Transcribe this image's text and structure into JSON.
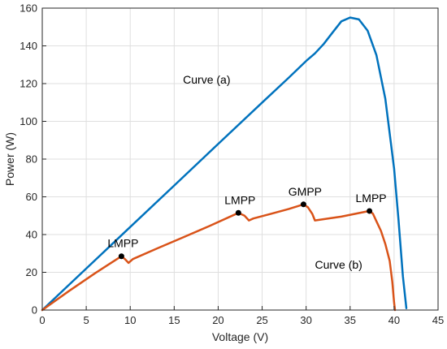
{
  "chart_data": {
    "type": "line",
    "title": "",
    "xlabel": "Voltage (V)",
    "ylabel": "Power (W)",
    "xlim": [
      0,
      45
    ],
    "ylim": [
      0,
      160
    ],
    "x_ticks": [
      0,
      5,
      10,
      15,
      20,
      25,
      30,
      35,
      40,
      45
    ],
    "y_ticks": [
      0,
      20,
      40,
      60,
      80,
      100,
      120,
      140,
      160
    ],
    "grid": true,
    "series": [
      {
        "name": "Curve (a)",
        "color": "#0072BD",
        "points": [
          [
            0,
            0
          ],
          [
            5,
            22
          ],
          [
            10,
            44
          ],
          [
            15,
            66
          ],
          [
            20,
            88
          ],
          [
            25,
            110
          ],
          [
            28,
            123
          ],
          [
            30,
            132
          ],
          [
            31,
            136
          ],
          [
            32,
            141
          ],
          [
            33,
            147
          ],
          [
            34,
            153
          ],
          [
            35,
            155
          ],
          [
            36,
            154
          ],
          [
            37,
            148
          ],
          [
            38,
            135
          ],
          [
            39,
            112
          ],
          [
            40,
            75
          ],
          [
            40.5,
            48
          ],
          [
            41,
            18
          ],
          [
            41.4,
            1
          ]
        ]
      },
      {
        "name": "Curve (b)",
        "color": "#D95319",
        "points": [
          [
            0,
            0
          ],
          [
            3,
            10
          ],
          [
            6,
            19.5
          ],
          [
            9,
            28.5
          ],
          [
            9.4,
            27
          ],
          [
            9.8,
            25
          ],
          [
            10.3,
            27
          ],
          [
            13,
            32.5
          ],
          [
            16,
            38.5
          ],
          [
            19,
            44.5
          ],
          [
            22.3,
            51.5
          ],
          [
            23,
            50
          ],
          [
            23.5,
            47.5
          ],
          [
            24,
            48.5
          ],
          [
            26,
            51
          ],
          [
            28,
            53.5
          ],
          [
            29.7,
            56
          ],
          [
            30.2,
            54.5
          ],
          [
            30.7,
            51
          ],
          [
            31,
            47.5
          ],
          [
            34,
            49.5
          ],
          [
            37.2,
            52.5
          ],
          [
            37.6,
            51
          ],
          [
            38,
            47
          ],
          [
            38.5,
            42
          ],
          [
            39,
            35
          ],
          [
            39.5,
            26
          ],
          [
            39.8,
            15
          ],
          [
            40,
            4
          ],
          [
            40.1,
            0
          ]
        ]
      }
    ],
    "markers": [
      {
        "label": "LMPP",
        "x": 9,
        "y": 28.5
      },
      {
        "label": "LMPP",
        "x": 22.3,
        "y": 51.5
      },
      {
        "label": "GMPP",
        "x": 29.7,
        "y": 56
      },
      {
        "label": "LMPP",
        "x": 37.2,
        "y": 52.5
      }
    ],
    "annotations": [
      {
        "text": "Curve (a)",
        "x": 16,
        "y": 120
      },
      {
        "text": "Curve (b)",
        "x": 31,
        "y": 22
      }
    ]
  }
}
